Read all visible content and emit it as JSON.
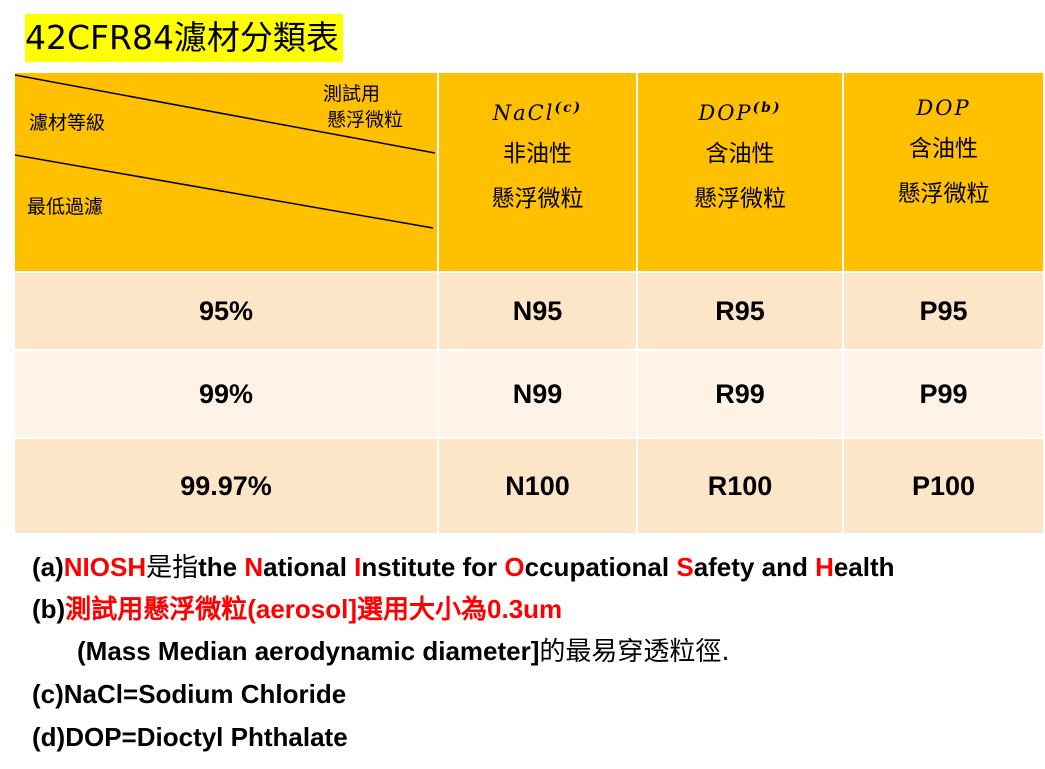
{
  "title": "42CFR84濾材分類表",
  "table": {
    "corner": {
      "top_right_line1": "測試用",
      "top_right_line2": "懸浮微粒",
      "mid_left": "濾材等級",
      "bottom_left": "最低過濾"
    },
    "columns": [
      {
        "agent": "NaCl",
        "sup": "(c)",
        "line1": "非油性",
        "line2": "懸浮微粒"
      },
      {
        "agent": "DOP",
        "sup": "(b)",
        "line1": "含油性",
        "line2": "懸浮微粒"
      },
      {
        "agent": "DOP",
        "sup": "",
        "line1": "含油性",
        "line2": "懸浮微粒"
      }
    ],
    "rows": [
      {
        "efficiency": "95%",
        "c1": "N95",
        "c2": "R95",
        "c3": "P95"
      },
      {
        "efficiency": "99%",
        "c1": "N99",
        "c2": "R99",
        "c3": "P99"
      },
      {
        "efficiency": "99.97%",
        "c1": "N100",
        "c2": "R100",
        "c3": "P100"
      }
    ]
  },
  "notes": {
    "a": {
      "prefix": "(a)",
      "niosh": "NIOSH",
      "shi_zhi": "是指",
      "the": "the ",
      "N": "N",
      "ational": "ational ",
      "I": "I",
      "nstitute": "nstitute for ",
      "O": "O",
      "ccupational": "ccupational ",
      "S": "S",
      "afety": "afety and ",
      "H": "H",
      "ealth": "ealth"
    },
    "b": {
      "prefix": "(b)",
      "red_text": "測試用懸浮微粒(aerosol]選用大小為",
      "size": "0.3um",
      "line2": "(Mass Median aerodynamic diameter]",
      "line2_tail": "的最易穿透粒徑."
    },
    "c": "(c)NaCl=Sodium Chloride",
    "d": "(d)DOP=Dioctyl Phthalate"
  },
  "colors": {
    "header": "#ffc000",
    "row_a": "#fde6c8",
    "row_b": "#fef3e6",
    "title_bg": "#ffff00",
    "highlight": "#ff0000"
  }
}
